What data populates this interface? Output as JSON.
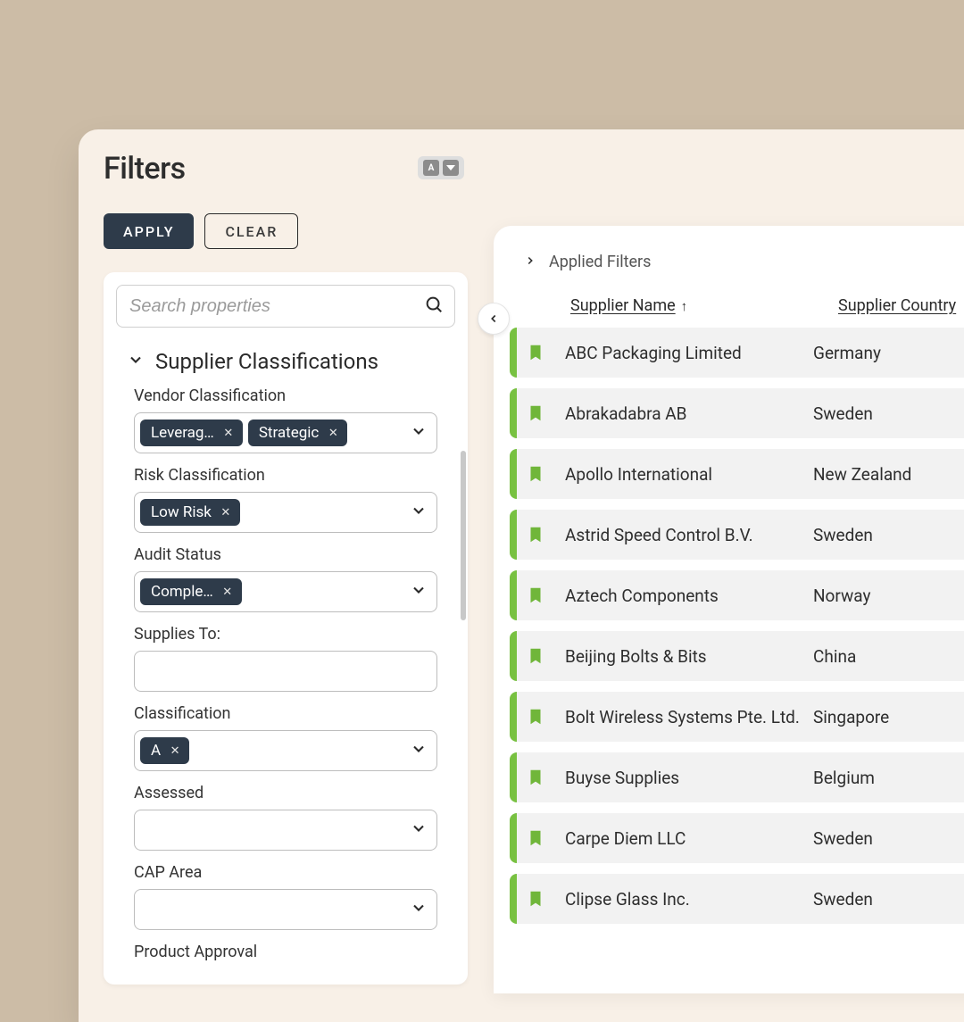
{
  "colors": {
    "page_bg": "#ccbca6",
    "card_bg": "#f8f0e7",
    "panel_bg": "#ffffff",
    "btn_primary_bg": "#2e3b4a",
    "btn_primary_fg": "#ffffff",
    "chip_bg": "#2e3b4a",
    "chip_fg": "#ffffff",
    "row_alt_bg": "#f2f2f2",
    "bookmark_fill": "#70b63a",
    "accent_strip": "#78c141",
    "text": "#2a2a2a"
  },
  "filters": {
    "title": "Filters",
    "apply_label": "APPLY",
    "clear_label": "CLEAR",
    "search_placeholder": "Search properties",
    "section_title": "Supplier Classifications",
    "fields": {
      "vendor_classification": {
        "label": "Vendor Classification",
        "chips": [
          "Leverag…",
          "Strategic"
        ]
      },
      "risk_classification": {
        "label": "Risk Classification",
        "chips": [
          "Low Risk"
        ]
      },
      "audit_status": {
        "label": "Audit Status",
        "chips": [
          "Comple…"
        ]
      },
      "supplies_to": {
        "label": "Supplies To:",
        "chips": []
      },
      "classification": {
        "label": "Classification",
        "chips": [
          "A"
        ]
      },
      "assessed": {
        "label": "Assessed",
        "chips": []
      },
      "cap_area": {
        "label": "CAP Area",
        "chips": []
      },
      "product_approval": {
        "label": "Product Approval",
        "chips": []
      }
    }
  },
  "results": {
    "applied_filters_label": "Applied Filters",
    "columns": {
      "name": "Supplier Name",
      "country": "Supplier Country",
      "sort_dir": "asc"
    },
    "rows": [
      {
        "name": "ABC Packaging Limited",
        "country": "Germany",
        "bookmarked": true
      },
      {
        "name": "Abrakadabra AB",
        "country": "Sweden",
        "bookmarked": true
      },
      {
        "name": "Apollo International",
        "country": "New Zealand",
        "bookmarked": true
      },
      {
        "name": "Astrid Speed Control B.V.",
        "country": "Sweden",
        "bookmarked": true
      },
      {
        "name": "Aztech Components",
        "country": "Norway",
        "bookmarked": true
      },
      {
        "name": "Beijing Bolts & Bits",
        "country": "China",
        "bookmarked": true
      },
      {
        "name": "Bolt Wireless Systems Pte. Ltd.",
        "country": "Singapore",
        "bookmarked": true
      },
      {
        "name": "Buyse Supplies",
        "country": "Belgium",
        "bookmarked": true
      },
      {
        "name": "Carpe Diem LLC",
        "country": "Sweden",
        "bookmarked": true
      },
      {
        "name": "Clipse Glass Inc.",
        "country": "Sweden",
        "bookmarked": true
      }
    ]
  }
}
